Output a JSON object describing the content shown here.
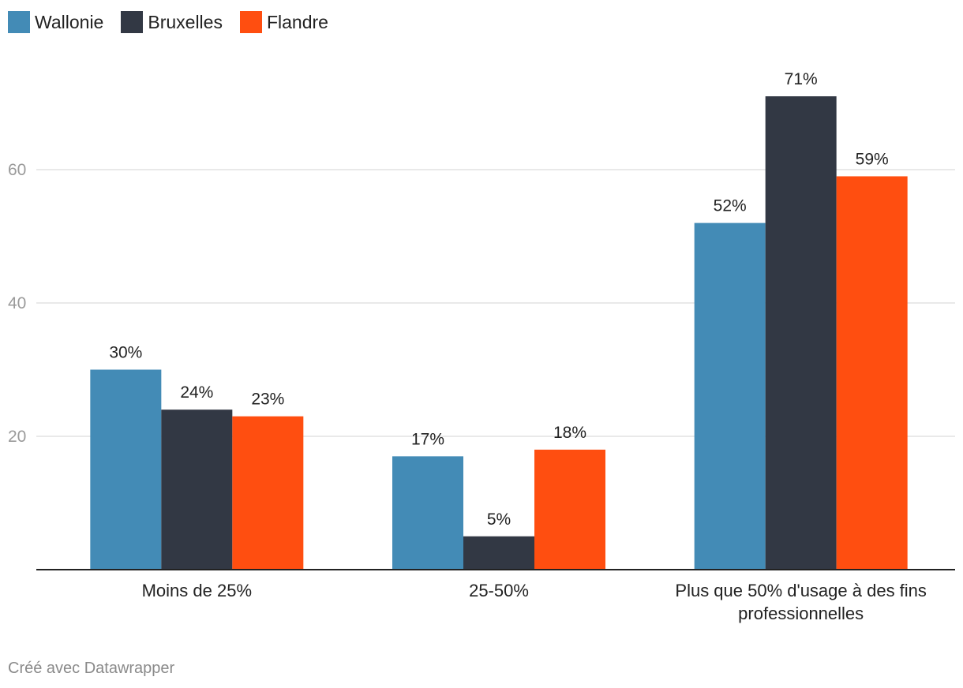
{
  "chart_data": {
    "type": "bar",
    "categories": [
      [
        "Moins de 25%"
      ],
      [
        "25-50%"
      ],
      [
        "Plus que 50% d'usage à des fins",
        "professionnelles"
      ]
    ],
    "series": [
      {
        "name": "Wallonie",
        "color": "#438bb6",
        "values": [
          30,
          17,
          52
        ],
        "labels": [
          "30%",
          "17%",
          "52%"
        ]
      },
      {
        "name": "Bruxelles",
        "color": "#323844",
        "values": [
          24,
          5,
          71
        ],
        "labels": [
          "24%",
          "5%",
          "71%"
        ]
      },
      {
        "name": "Flandre",
        "color": "#ff4e10",
        "values": [
          23,
          18,
          59
        ],
        "labels": [
          "23%",
          "18%",
          "59%"
        ]
      }
    ],
    "yticks": [
      20,
      40,
      60
    ],
    "ytick_labels": [
      "20",
      "40",
      "60"
    ],
    "ylim": [
      0,
      80
    ],
    "grid": true,
    "legend_position": "top-left",
    "title": "",
    "xlabel": "",
    "ylabel": ""
  },
  "footer": {
    "credit": "Créé avec Datawrapper"
  }
}
